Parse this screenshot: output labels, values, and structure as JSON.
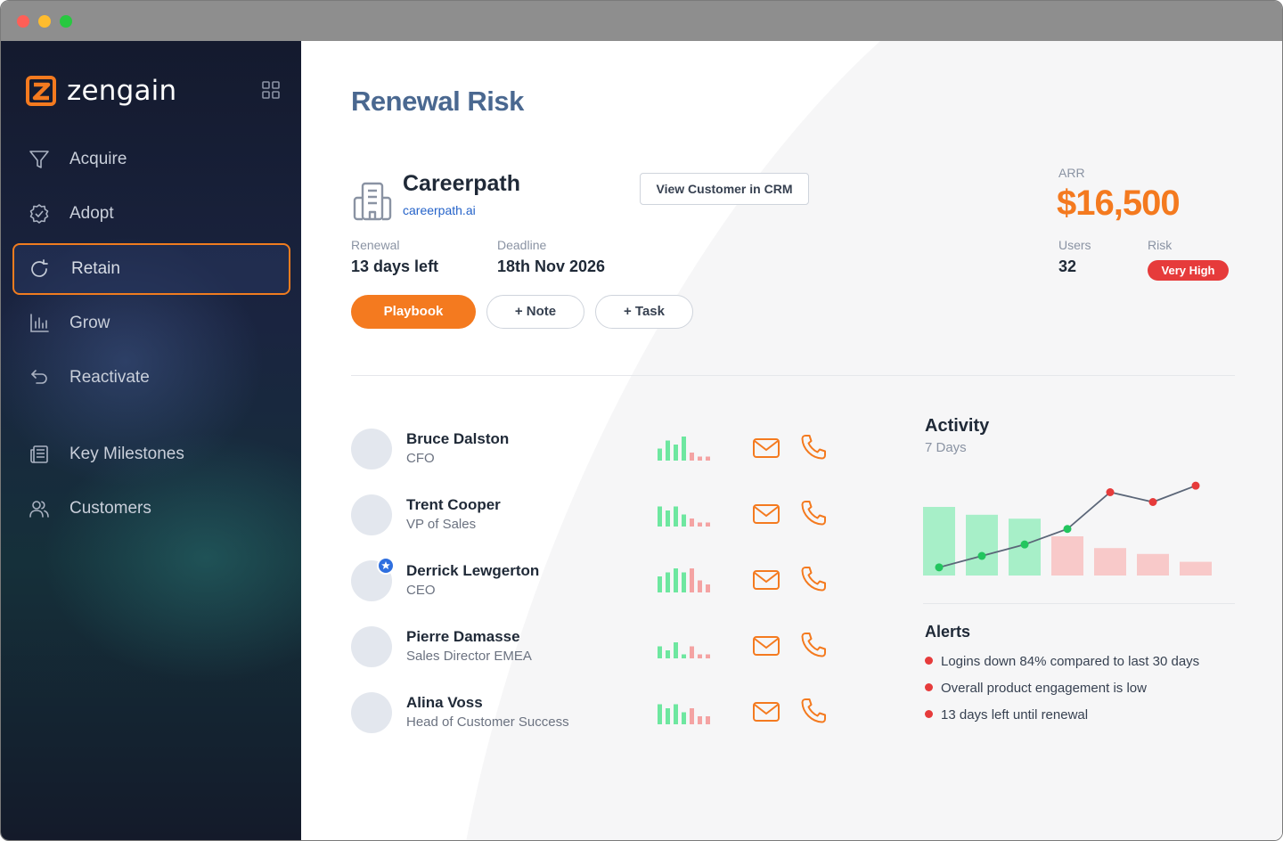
{
  "app": {
    "name": "zengain"
  },
  "colors": {
    "accent": "#f47a1f",
    "risk": "#e63b3b",
    "positive": "#4ade80",
    "negative": "#f4a3a3",
    "link": "#2563c9"
  },
  "sidebar": {
    "items": [
      {
        "label": "Acquire",
        "icon": "funnel-icon"
      },
      {
        "label": "Adopt",
        "icon": "badge-check-icon"
      },
      {
        "label": "Retain",
        "icon": "refresh-icon",
        "active": true
      },
      {
        "label": "Grow",
        "icon": "bar-chart-icon"
      },
      {
        "label": "Reactivate",
        "icon": "undo-arrow-icon"
      },
      {
        "label": "Key Milestones",
        "icon": "newspaper-icon"
      },
      {
        "label": "Customers",
        "icon": "users-icon"
      }
    ]
  },
  "page": {
    "title": "Renewal Risk"
  },
  "customer": {
    "name": "Careerpath",
    "url": "careerpath.ai",
    "crm_button": "View Customer in CRM",
    "renewal_label": "Renewal",
    "renewal_value": "13 days left",
    "deadline_label": "Deadline",
    "deadline_value": "18th Nov 2026",
    "arr_label": "ARR",
    "arr_value": "$16,500",
    "users_label": "Users",
    "users_value": "32",
    "risk_label": "Risk",
    "risk_value": "Very High"
  },
  "actions": {
    "playbook": "Playbook",
    "note": "+ Note",
    "task": "+ Task"
  },
  "contacts": [
    {
      "name": "Bruce Dalston",
      "role": "CFO",
      "activity": [
        3,
        5,
        4,
        6,
        2,
        1,
        1
      ]
    },
    {
      "name": "Trent Cooper",
      "role": "VP of Sales",
      "activity": [
        5,
        4,
        5,
        3,
        2,
        1,
        1
      ]
    },
    {
      "name": "Derrick Lewgerton",
      "role": "CEO",
      "starred": true,
      "activity": [
        4,
        5,
        6,
        5,
        6,
        3,
        2
      ]
    },
    {
      "name": "Pierre Damasse",
      "role": "Sales Director EMEA",
      "activity": [
        3,
        2,
        4,
        1,
        3,
        1,
        1
      ]
    },
    {
      "name": "Alina Voss",
      "role": "Head of Customer Success",
      "activity": [
        5,
        4,
        5,
        3,
        4,
        2,
        2
      ]
    }
  ],
  "activity": {
    "title": "Activity",
    "subtitle": "7 Days",
    "bars": [
      70,
      62,
      58,
      40,
      28,
      22,
      14
    ],
    "line": [
      10,
      24,
      38,
      57,
      102,
      90,
      110
    ]
  },
  "alerts": {
    "title": "Alerts",
    "items": [
      "Logins down 84% compared to last 30 days",
      "Overall product engagement is low",
      "13 days left until renewal"
    ]
  }
}
